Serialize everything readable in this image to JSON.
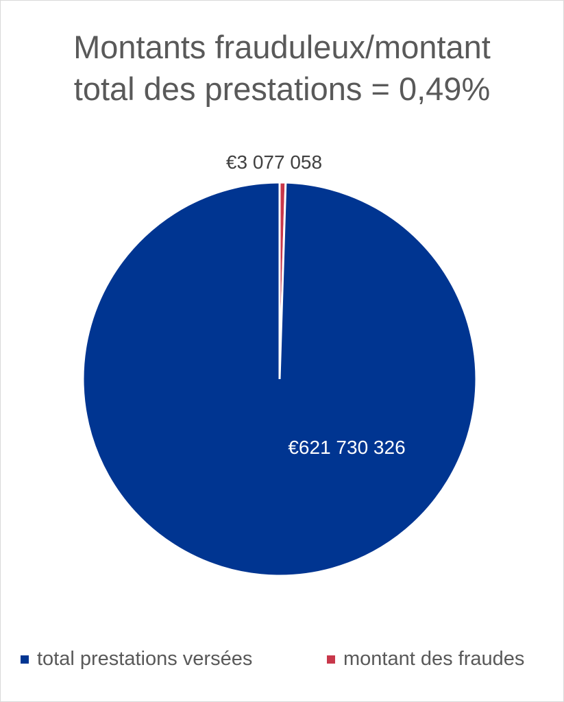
{
  "chart_data": {
    "type": "pie",
    "title_lines": [
      "Montants frauduleux/montant",
      "total des prestations = 0,49%"
    ],
    "start_angle_deg": 0,
    "direction": "clockwise",
    "slices": [
      {
        "name": "montant des fraudes",
        "value": 3077058,
        "label": "€3 077 058",
        "color": "#c8374a"
      },
      {
        "name": "total prestations versées",
        "value": 621730326,
        "label": "€621 730 326",
        "color": "#003591"
      }
    ],
    "legend": {
      "position": "bottom",
      "entries": [
        {
          "label": "total prestations versées",
          "color": "#003591"
        },
        {
          "label": "montant des fraudes",
          "color": "#c8374a"
        }
      ]
    }
  }
}
